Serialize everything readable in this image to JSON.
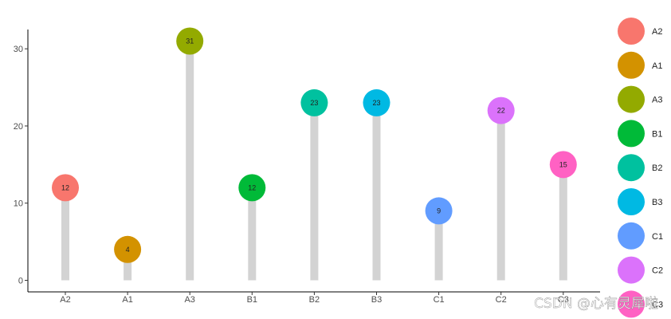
{
  "chart_data": {
    "type": "lollipop",
    "categories": [
      "A2",
      "A1",
      "A3",
      "B1",
      "B2",
      "B3",
      "C1",
      "C2",
      "C3"
    ],
    "values": [
      12,
      4,
      31,
      12,
      23,
      23,
      9,
      22,
      15
    ],
    "colors": [
      "#F8766D",
      "#D39200",
      "#93AA00",
      "#00BA38",
      "#00C19F",
      "#00B9E3",
      "#619CFF",
      "#DB72FB",
      "#FF61C3"
    ],
    "stem_color": "#d3d3d3",
    "ylim": [
      -1.5,
      32.5
    ],
    "yticks": [
      0,
      10,
      20,
      30
    ],
    "title": "",
    "xlabel": "",
    "ylabel": "",
    "grid": false,
    "legend": {
      "position": "right",
      "entries": [
        "A2",
        "A1",
        "A3",
        "B1",
        "B2",
        "B3",
        "C1",
        "C2",
        "C3"
      ]
    }
  },
  "watermark": "CSDN @心有灵犀啦"
}
